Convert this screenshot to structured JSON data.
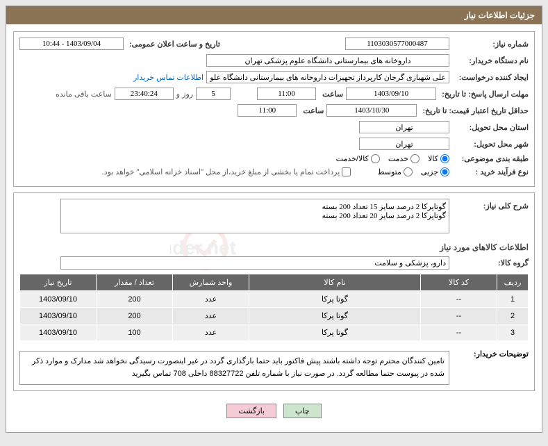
{
  "header": {
    "title": "جزئیات اطلاعات نیاز"
  },
  "labels": {
    "need_number": "شماره نیاز:",
    "announce_date": "تاریخ و ساعت اعلان عمومی:",
    "buyer_org": "نام دستگاه خریدار:",
    "creator": "ایجاد کننده درخواست:",
    "contact": "اطلاعات تماس خریدار",
    "deadline": "مهلت ارسال پاسخ: تا تاریخ:",
    "time": "ساعت",
    "days_and": "روز و",
    "remaining": "ساعت باقی مانده",
    "validity": "حداقل تاریخ اعتبار قیمت: تا تاریخ:",
    "province": "استان محل تحویل:",
    "city": "شهر محل تحویل:",
    "category": "طبقه بندی موضوعی:",
    "goods": "کالا",
    "service": "خدمت",
    "goods_service": "کالا/خدمت",
    "process": "نوع فرآیند خرید :",
    "minor": "جزیی",
    "medium": "متوسط",
    "payment_note": "پرداخت تمام یا بخشی از مبلغ خرید،از محل \"اسناد خزانه اسلامی\" خواهد بود.",
    "need_desc": "شرح کلی نیاز:",
    "items_title": "اطلاعات کالاهای مورد نیاز",
    "group": "گروه کالا:",
    "buyer_notes": "توضیحات خریدار:"
  },
  "values": {
    "need_number": "1103030577000487",
    "announce_date": "1403/09/04 - 10:44",
    "buyer_org": "داروخانه های بیمارستانی دانشگاه علوم پزشکی تهران",
    "creator": "علی شهبازی گرجان کارپرداز تجهیزات داروخانه های بیمارستانی دانشگاه علوم پ",
    "deadline_date": "1403/09/10",
    "deadline_time": "11:00",
    "days": "5",
    "remaining_time": "23:40:24",
    "validity_date": "1403/10/30",
    "validity_time": "11:00",
    "province": "تهران",
    "city": "تهران",
    "desc_line1": "گوتاپرکا 2 درصد سایز 15 تعداد 200 بسته",
    "desc_line2": "گوتاپرکا 2 درصد سایز 20 تعداد 200 بسته",
    "group": "دارو، پزشکی و سلامت",
    "buyer_notes": "تامین کنندگان محترم توجه داشته باشند پیش فاکتور باید حتما بارگذاری گردد در غیر اینصورت رسیدگی نخواهد شد مدارک و موارد ذکر شده در پیوست حتما مطالعه گردد. در صورت نیاز با شماره تلفن 88327722 داخلی 708 تماس بگیرید"
  },
  "table": {
    "headers": [
      "ردیف",
      "کد کالا",
      "نام کالا",
      "واحد شمارش",
      "تعداد / مقدار",
      "تاریخ نیاز"
    ],
    "rows": [
      [
        "1",
        "--",
        "گوتا پرکا",
        "عدد",
        "200",
        "1403/09/10"
      ],
      [
        "2",
        "--",
        "گوتا پرکا",
        "عدد",
        "200",
        "1403/09/10"
      ],
      [
        "3",
        "--",
        "گوتا پرکا",
        "عدد",
        "100",
        "1403/09/10"
      ]
    ]
  },
  "buttons": {
    "print": "چاپ",
    "back": "بازگشت"
  },
  "colors": {
    "header_bg": "#8b7355",
    "th_bg": "#666666",
    "row_bg": "#f0f0f0",
    "alt_row_bg": "#e8e8e8",
    "print_btn": "#cce5cc",
    "back_btn": "#f5ccd5"
  }
}
